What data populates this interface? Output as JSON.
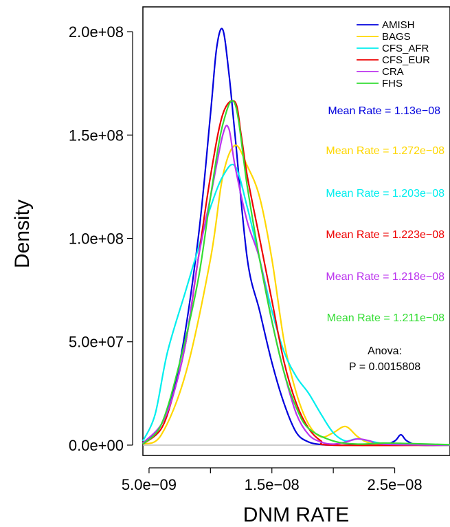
{
  "chart_data": {
    "type": "line",
    "xlabel": "DNM RATE",
    "ylabel": "Density",
    "xlim": [
      4.5e-09,
      2.95e-08
    ],
    "ylim": [
      -5000000.0,
      212000000.0
    ],
    "x_ticks": [
      5e-09,
      1e-08,
      1.5e-08,
      2e-08,
      2.5e-08
    ],
    "x_tick_labels": [
      "5.0e−09",
      "",
      "1.5e−08",
      "",
      "2.5e−08"
    ],
    "y_ticks": [
      0,
      50000000.0,
      100000000.0,
      150000000.0,
      200000000.0
    ],
    "y_tick_labels": [
      "0.0e+00",
      "5.0e+07",
      "1.0e+08",
      "1.5e+08",
      "2.0e+08"
    ],
    "baseline_color": "#bbbbbb",
    "legend_position": "top-right",
    "series": [
      {
        "name": "AMISH",
        "color": "#0000dd",
        "x": [
          4.5e-09,
          6e-09,
          7.5e-09,
          9e-09,
          1e-08,
          1.05e-08,
          1.1e-08,
          1.15e-08,
          1.2e-08,
          1.3e-08,
          1.4e-08,
          1.5e-08,
          1.6e-08,
          1.7e-08,
          1.8e-08,
          1.9e-08,
          2e-08,
          2.2e-08,
          2.4e-08,
          2.5e-08,
          2.55e-08,
          2.6e-08,
          2.7e-08,
          2.95e-08
        ],
        "y": [
          1000000.0,
          10000000.0,
          40000000.0,
          100000000.0,
          160000000.0,
          192000000.0,
          201000000.0,
          180000000.0,
          150000000.0,
          90000000.0,
          65000000.0,
          40000000.0,
          20000000.0,
          6000000.0,
          1500000.0,
          300000.0,
          0,
          0,
          0,
          2000000.0,
          5000000.0,
          2000000.0,
          0,
          0
        ]
      },
      {
        "name": "BAGS",
        "color": "#ffd700",
        "x": [
          4.5e-09,
          6e-09,
          8e-09,
          1e-08,
          1.1e-08,
          1.2e-08,
          1.3e-08,
          1.4e-08,
          1.5e-08,
          1.6e-08,
          1.7e-08,
          1.8e-08,
          1.9e-08,
          2e-08,
          2.1e-08,
          2.2e-08,
          2.3e-08,
          2.5e-08,
          2.95e-08
        ],
        "y": [
          500000.0,
          5000000.0,
          35000000.0,
          90000000.0,
          130000000.0,
          145000000.0,
          135000000.0,
          120000000.0,
          90000000.0,
          50000000.0,
          25000000.0,
          10000000.0,
          4000000.0,
          6000000.0,
          9000000.0,
          4000000.0,
          1000000.0,
          100000.0,
          0
        ]
      },
      {
        "name": "CFS_AFR",
        "color": "#00eeee",
        "x": [
          4.5e-09,
          5.5e-09,
          6.5e-09,
          8e-09,
          9e-09,
          1e-08,
          1.1e-08,
          1.2e-08,
          1.3e-08,
          1.4e-08,
          1.5e-08,
          1.6e-08,
          1.7e-08,
          1.8e-08,
          1.9e-08,
          2e-08,
          2.1e-08,
          2.2e-08,
          2.4e-08,
          2.6e-08,
          2.95e-08
        ],
        "y": [
          2000000.0,
          15000000.0,
          45000000.0,
          75000000.0,
          95000000.0,
          115000000.0,
          130000000.0,
          135000000.0,
          115000000.0,
          90000000.0,
          65000000.0,
          45000000.0,
          33000000.0,
          25000000.0,
          15000000.0,
          6000000.0,
          2000000.0,
          3000000.0,
          800000.0,
          200000.0,
          0
        ]
      },
      {
        "name": "CFS_EUR",
        "color": "#ee0000",
        "x": [
          4.5e-09,
          6e-09,
          7e-09,
          8e-09,
          9e-09,
          1e-08,
          1.1e-08,
          1.2e-08,
          1.25e-08,
          1.3e-08,
          1.4e-08,
          1.5e-08,
          1.6e-08,
          1.7e-08,
          1.8e-08,
          1.9e-08,
          2e-08,
          2.95e-08
        ],
        "y": [
          500000.0,
          8000000.0,
          25000000.0,
          50000000.0,
          90000000.0,
          130000000.0,
          160000000.0,
          166000000.0,
          150000000.0,
          130000000.0,
          100000000.0,
          70000000.0,
          40000000.0,
          20000000.0,
          8000000.0,
          2000000.0,
          0,
          0
        ]
      },
      {
        "name": "CRA",
        "color": "#bb33ee",
        "x": [
          4.5e-09,
          6e-09,
          7e-09,
          8e-09,
          9e-09,
          1e-08,
          1.1e-08,
          1.15e-08,
          1.2e-08,
          1.3e-08,
          1.4e-08,
          1.5e-08,
          1.6e-08,
          1.7e-08,
          1.8e-08,
          1.9e-08,
          2e-08,
          2.1e-08,
          2.2e-08,
          2.3e-08,
          2.4e-08,
          2.95e-08
        ],
        "y": [
          1000000.0,
          10000000.0,
          25000000.0,
          50000000.0,
          90000000.0,
          120000000.0,
          150000000.0,
          153000000.0,
          135000000.0,
          108000000.0,
          90000000.0,
          60000000.0,
          35000000.0,
          15000000.0,
          5000000.0,
          1500000.0,
          500000.0,
          1500000.0,
          3000000.0,
          2000000.0,
          500000.0,
          0
        ]
      },
      {
        "name": "FHS",
        "color": "#33dd33",
        "x": [
          4.5e-09,
          6e-09,
          7.5e-09,
          9e-09,
          1e-08,
          1.1e-08,
          1.2e-08,
          1.3e-08,
          1.4e-08,
          1.5e-08,
          1.6e-08,
          1.7e-08,
          1.8e-08,
          2e-08,
          2.2e-08,
          2.4e-08,
          2.6e-08,
          2.95e-08
        ],
        "y": [
          500000.0,
          10000000.0,
          40000000.0,
          80000000.0,
          120000000.0,
          155000000.0,
          165000000.0,
          125000000.0,
          90000000.0,
          60000000.0,
          35000000.0,
          18000000.0,
          8000000.0,
          2000000.0,
          500000.0,
          1000000.0,
          800000.0,
          200000.0
        ]
      }
    ],
    "annotations": {
      "mean_rates": [
        {
          "text": "Mean Rate = 1.13e−08",
          "color": "#0000dd"
        },
        {
          "text": "Mean Rate = 1.272e−08",
          "color": "#ffd700"
        },
        {
          "text": "Mean Rate = 1.203e−08",
          "color": "#00eeee"
        },
        {
          "text": "Mean Rate = 1.223e−08",
          "color": "#ee0000"
        },
        {
          "text": "Mean Rate = 1.218e−08",
          "color": "#bb33ee"
        },
        {
          "text": "Mean Rate = 1.211e−08",
          "color": "#33dd33"
        }
      ],
      "anova_label": "Anova:",
      "anova_p": "P = 0.0015808"
    }
  }
}
